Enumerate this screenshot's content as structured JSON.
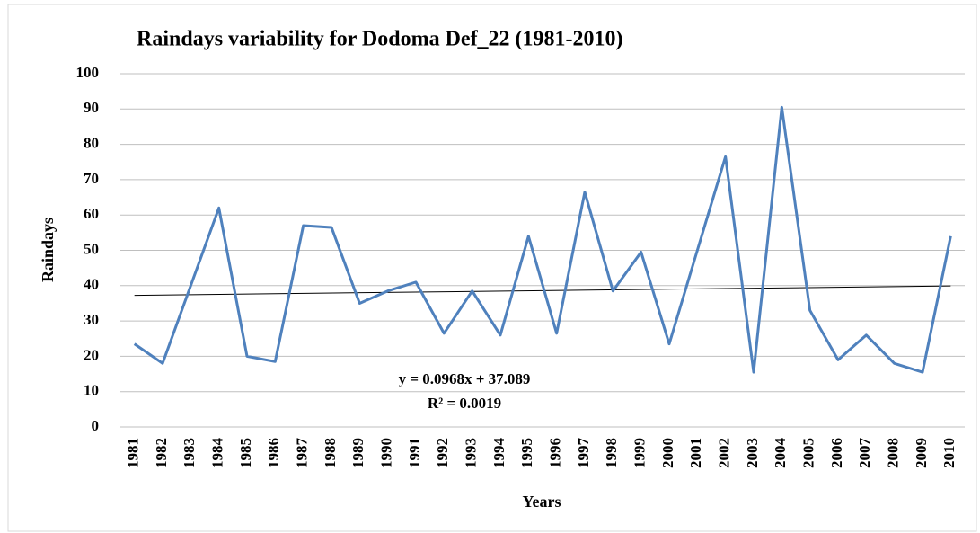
{
  "chart_data": {
    "type": "line",
    "title": "Raindays variability for Dodoma  Def_22 (1981-2010)",
    "x_label": "Years",
    "y_label": "Raindays",
    "categories": [
      "1981",
      "1982",
      "1983",
      "1984",
      "1985",
      "1986",
      "1987",
      "1988",
      "1989",
      "1990",
      "1991",
      "1992",
      "1993",
      "1994",
      "1995",
      "1996",
      "1997",
      "1998",
      "1999",
      "2000",
      "2001",
      "2002",
      "2003",
      "2004",
      "2005",
      "2006",
      "2007",
      "2008",
      "2009",
      "2010"
    ],
    "series": [
      {
        "name": "Raindays",
        "color": "#4f81bd",
        "values": [
          23.5,
          18,
          40,
          62,
          20,
          18.5,
          57,
          56.5,
          35,
          38.5,
          41,
          26.5,
          38.5,
          26,
          54,
          26.5,
          66.5,
          38.5,
          49.5,
          23.5,
          50,
          76.5,
          15.5,
          90.5,
          33,
          19,
          26,
          18,
          15.5,
          54
        ]
      }
    ],
    "trendline": {
      "color": "#000000",
      "equation": "y = 0.0968x + 37.089",
      "r_squared": "R² = 0.0019"
    },
    "ylim": [
      0,
      100
    ],
    "yticks": [
      0,
      10,
      20,
      30,
      40,
      50,
      60,
      70,
      80,
      90,
      100
    ],
    "grid": true
  }
}
